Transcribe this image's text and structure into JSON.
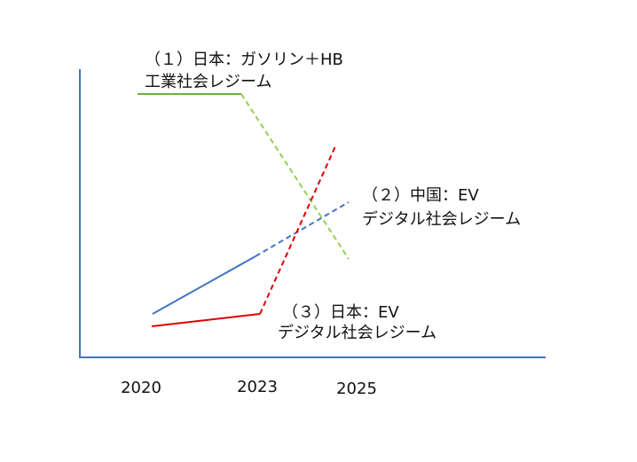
{
  "labels": [
    {
      "lines": [
        "（１）日本：ガソリン＋HB",
        "工業社会レジーム"
      ]
    },
    {
      "lines": [
        "（２）中国：EV",
        "デジタル社会レジーム"
      ]
    },
    {
      "lines": [
        "（３）日本：EV",
        "デジタル社会レジーム"
      ]
    }
  ],
  "x_labels": [
    "2020",
    "2023",
    "2025"
  ]
}
